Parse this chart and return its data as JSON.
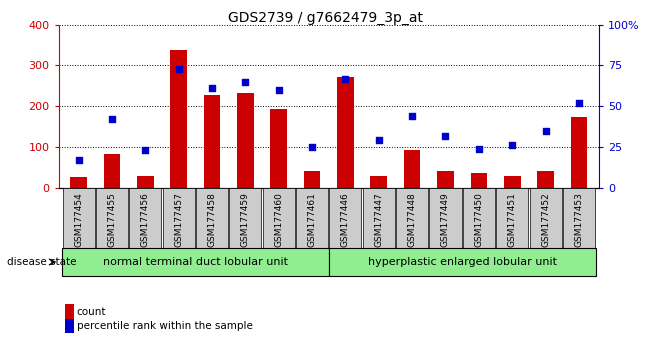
{
  "title": "GDS2739 / g7662479_3p_at",
  "samples": [
    "GSM177454",
    "GSM177455",
    "GSM177456",
    "GSM177457",
    "GSM177458",
    "GSM177459",
    "GSM177460",
    "GSM177461",
    "GSM177446",
    "GSM177447",
    "GSM177448",
    "GSM177449",
    "GSM177450",
    "GSM177451",
    "GSM177452",
    "GSM177453"
  ],
  "counts": [
    25,
    82,
    28,
    338,
    228,
    232,
    192,
    40,
    272,
    28,
    93,
    40,
    35,
    28,
    42,
    174
  ],
  "percentiles": [
    17,
    42,
    23,
    73,
    61,
    65,
    60,
    25,
    67,
    29,
    44,
    32,
    24,
    26,
    35,
    52
  ],
  "group1_label": "normal terminal duct lobular unit",
  "group1_count": 8,
  "group2_label": "hyperplastic enlarged lobular unit",
  "group2_count": 8,
  "bar_color": "#cc0000",
  "dot_color": "#0000cc",
  "ylim_left": [
    0,
    400
  ],
  "ylim_right": [
    0,
    100
  ],
  "yticks_left": [
    0,
    100,
    200,
    300,
    400
  ],
  "yticks_right": [
    0,
    25,
    50,
    75,
    100
  ],
  "yticklabels_right": [
    "0",
    "25",
    "50",
    "75",
    "100%"
  ],
  "group1_color": "#90ee90",
  "group2_color": "#90ee90",
  "disease_state_label": "disease state",
  "legend_count_label": "count",
  "legend_pct_label": "percentile rank within the sample",
  "background_color": "#ffffff",
  "xticklabel_bg": "#cccccc"
}
